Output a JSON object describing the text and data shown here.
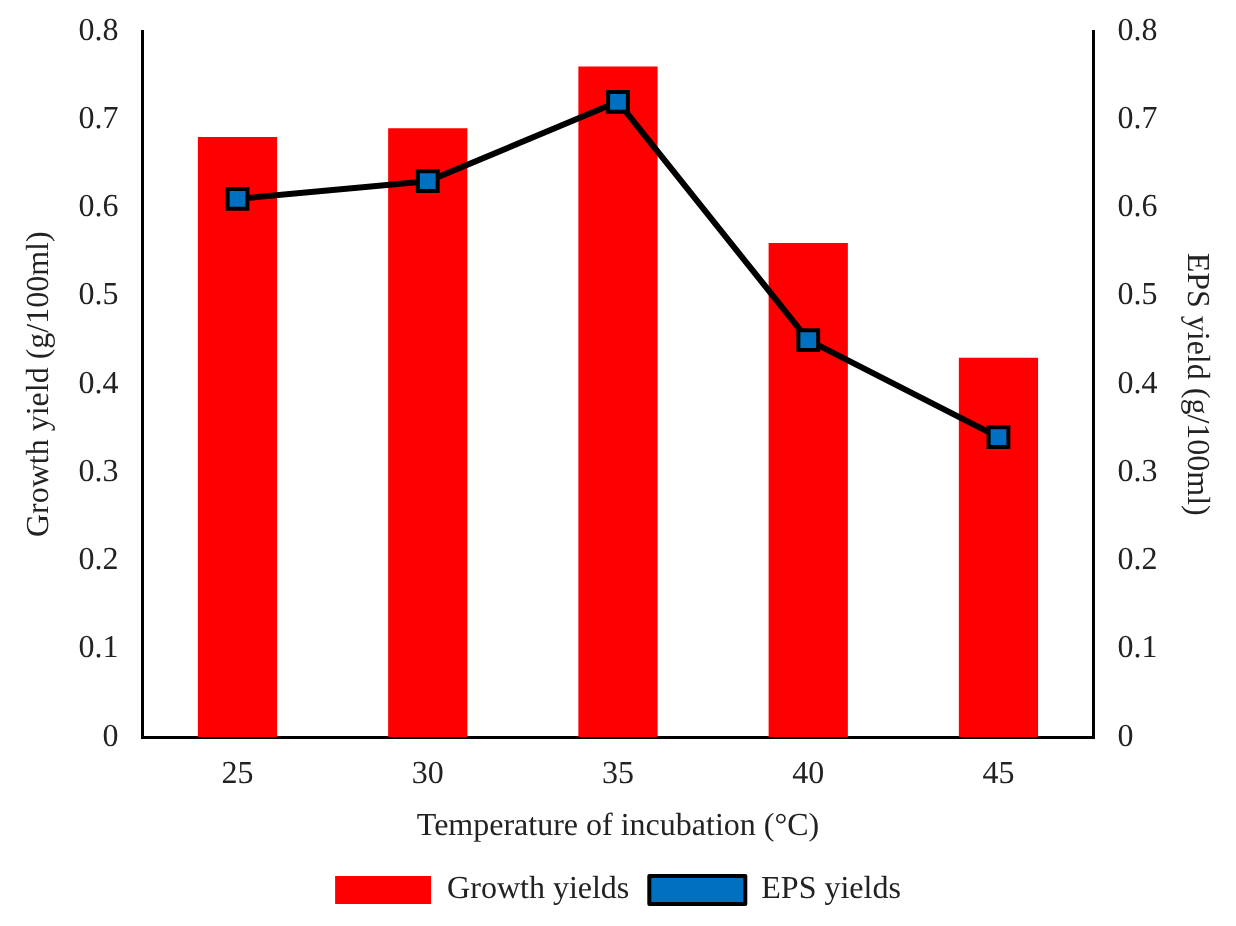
{
  "chart_data": {
    "type": "bar",
    "xlabel": "Temperature of incubation (°C)",
    "ylabel": "Growth yield (g/100ml)",
    "y2label": "EPS yield (g/100ml)",
    "categories": [
      "25",
      "30",
      "35",
      "40",
      "45"
    ],
    "series": [
      {
        "name": "Growth yields",
        "color": "#ff0000",
        "values": [
          0.68,
          0.69,
          0.76,
          0.56,
          0.43
        ]
      },
      {
        "name": "EPS yields",
        "type": "line",
        "axis": "y2",
        "color": "#000000",
        "marker": "square",
        "values": [
          0.61,
          0.63,
          0.72,
          0.45,
          0.34
        ]
      }
    ],
    "ylim": [
      0,
      0.8
    ],
    "yticks": [
      0,
      0.1,
      0.2,
      0.3,
      0.4,
      0.5,
      0.6,
      0.7,
      0.8
    ],
    "y2lim": [
      0,
      0.8
    ],
    "y2ticks": [
      0,
      0.1,
      0.2,
      0.3,
      0.4,
      0.5,
      0.6,
      0.7,
      0.8
    ],
    "grid": false,
    "legend": "bottom"
  }
}
